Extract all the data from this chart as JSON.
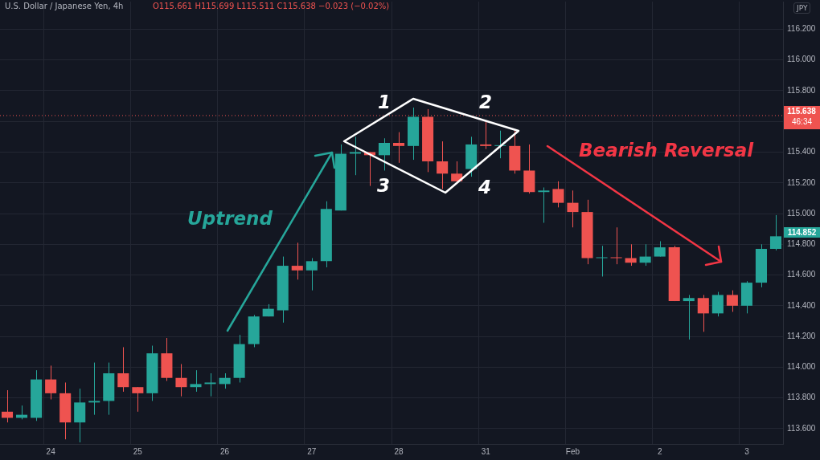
{
  "chart_data": {
    "type": "candlestick",
    "title": "U.S. Dollar / Japanese Yen, 4h",
    "subtitle": "O115.661 H115.699 L115.511 C115.638 −0.023 (−0.02%)",
    "ylabel": "JPY",
    "categories": [
      null,
      null,
      null,
      "24",
      null,
      null,
      null,
      null,
      null,
      "25",
      null,
      null,
      null,
      null,
      null,
      "26",
      null,
      null,
      null,
      null,
      null,
      "27",
      null,
      null,
      null,
      null,
      null,
      "28",
      null,
      null,
      null,
      null,
      null,
      "31",
      null,
      null,
      null,
      null,
      null,
      "Feb",
      null,
      null,
      null,
      null,
      null,
      "2",
      null,
      null,
      null,
      null,
      null,
      "3",
      null,
      null
    ],
    "ohlc": [
      [
        113.71,
        113.85,
        113.64,
        113.67
      ],
      [
        113.67,
        113.75,
        113.66,
        113.69
      ],
      [
        113.67,
        113.98,
        113.65,
        113.92
      ],
      [
        113.92,
        114.01,
        113.79,
        113.83
      ],
      [
        113.83,
        113.9,
        113.53,
        113.64
      ],
      [
        113.64,
        113.86,
        113.51,
        113.77
      ],
      [
        113.77,
        114.03,
        113.69,
        113.78
      ],
      [
        113.78,
        114.03,
        113.69,
        113.96
      ],
      [
        113.96,
        114.13,
        113.84,
        113.87
      ],
      [
        113.87,
        113.87,
        113.71,
        113.83
      ],
      [
        113.83,
        114.14,
        113.78,
        114.09
      ],
      [
        114.09,
        114.19,
        113.91,
        113.93
      ],
      [
        113.93,
        114.02,
        113.81,
        113.87
      ],
      [
        113.87,
        113.98,
        113.84,
        113.89
      ],
      [
        113.89,
        113.96,
        113.81,
        113.9
      ],
      [
        113.89,
        113.96,
        113.86,
        113.93
      ],
      [
        113.93,
        114.21,
        113.9,
        114.15
      ],
      [
        114.15,
        114.34,
        114.13,
        114.33
      ],
      [
        114.33,
        114.41,
        114.33,
        114.38
      ],
      [
        114.37,
        114.72,
        114.29,
        114.66
      ],
      [
        114.66,
        114.81,
        114.57,
        114.63
      ],
      [
        114.63,
        114.71,
        114.5,
        114.69
      ],
      [
        114.69,
        115.08,
        114.65,
        115.03
      ],
      [
        115.02,
        115.45,
        115.02,
        115.39
      ],
      [
        115.39,
        115.5,
        115.25,
        115.4
      ],
      [
        115.4,
        115.4,
        115.18,
        115.38
      ],
      [
        115.38,
        115.49,
        115.28,
        115.46
      ],
      [
        115.46,
        115.53,
        115.33,
        115.44
      ],
      [
        115.44,
        115.69,
        115.35,
        115.63
      ],
      [
        115.63,
        115.68,
        115.27,
        115.34
      ],
      [
        115.34,
        115.47,
        115.16,
        115.26
      ],
      [
        115.26,
        115.34,
        115.21,
        115.21
      ],
      [
        115.29,
        115.5,
        115.24,
        115.45
      ],
      [
        115.45,
        115.6,
        115.42,
        115.44
      ],
      [
        115.44,
        115.54,
        115.36,
        115.44
      ],
      [
        115.44,
        115.54,
        115.26,
        115.28
      ],
      [
        115.28,
        115.45,
        115.13,
        115.14
      ],
      [
        115.14,
        115.17,
        114.94,
        115.15
      ],
      [
        115.16,
        115.21,
        115.04,
        115.07
      ],
      [
        115.07,
        115.15,
        114.91,
        115.01
      ],
      [
        115.01,
        115.09,
        114.67,
        114.71
      ],
      [
        114.71,
        114.79,
        114.59,
        114.71
      ],
      [
        114.71,
        114.91,
        114.67,
        114.71
      ],
      [
        114.71,
        114.8,
        114.66,
        114.68
      ],
      [
        114.68,
        114.8,
        114.66,
        114.72
      ],
      [
        114.72,
        114.82,
        114.72,
        114.78
      ],
      [
        114.78,
        114.79,
        114.43,
        114.43
      ],
      [
        114.43,
        114.47,
        114.18,
        114.45
      ],
      [
        114.45,
        114.47,
        114.23,
        114.35
      ],
      [
        114.35,
        114.49,
        114.33,
        114.47
      ],
      [
        114.47,
        114.5,
        114.36,
        114.4
      ],
      [
        114.4,
        114.56,
        114.35,
        114.55
      ],
      [
        114.55,
        114.8,
        114.52,
        114.77
      ],
      [
        114.77,
        114.99,
        114.76,
        114.852
      ]
    ],
    "colors": [
      "#ef5350",
      "#26a69a",
      "#26a69a",
      "#ef5350",
      "#ef5350",
      "#26a69a",
      "#26a69a",
      "#26a69a",
      "#ef5350",
      "#ef5350",
      "#26a69a",
      "#ef5350",
      "#ef5350",
      "#26a69a",
      "#26a69a",
      "#26a69a",
      "#26a69a",
      "#26a69a",
      "#26a69a",
      "#26a69a",
      "#ef5350",
      "#26a69a",
      "#26a69a",
      "#26a69a",
      "#26a69a",
      "#ef5350",
      "#26a69a",
      "#ef5350",
      "#26a69a",
      "#ef5350",
      "#ef5350",
      "#ef5350",
      "#26a69a",
      "#ef5350",
      "#26a69a",
      "#ef5350",
      "#ef5350",
      "#26a69a",
      "#ef5350",
      "#ef5350",
      "#ef5350",
      "#26a69a",
      "#ef5350",
      "#ef5350",
      "#26a69a",
      "#26a69a",
      "#ef5350",
      "#26a69a",
      "#ef5350",
      "#26a69a",
      "#ef5350",
      "#26a69a",
      "#26a69a",
      "#26a69a"
    ],
    "ylim": [
      113.5,
      116.38
    ],
    "yticks": [
      {
        "value": 113.6,
        "label": "113.600"
      },
      {
        "value": 113.8,
        "label": "113.800"
      },
      {
        "value": 114,
        "label": "114.000"
      },
      {
        "value": 114.2,
        "label": "114.200"
      },
      {
        "value": 114.4,
        "label": "114.400"
      },
      {
        "value": 114.6,
        "label": "114.600"
      },
      {
        "value": 114.8,
        "label": "114.800"
      },
      {
        "value": 115,
        "label": "115.000"
      },
      {
        "value": 115.2,
        "label": "115.200"
      },
      {
        "value": 115.4,
        "label": "115.400"
      },
      {
        "value": 115.6,
        "label": null
      },
      {
        "value": 115.8,
        "label": "115.800"
      },
      {
        "value": 116,
        "label": "116.000"
      },
      {
        "value": 116.2,
        "label": "116.200"
      }
    ],
    "ref_lines": [
      {
        "axis": "y",
        "value": 115.638,
        "label": "115.638",
        "color": "#ef5350",
        "line_style": "dotted"
      }
    ],
    "annotations": [
      "1",
      "2",
      "3",
      "4",
      "Uptrend",
      "Bearish Reversal",
      "46:34",
      "114.852"
    ],
    "grid": true,
    "legend": false
  }
}
